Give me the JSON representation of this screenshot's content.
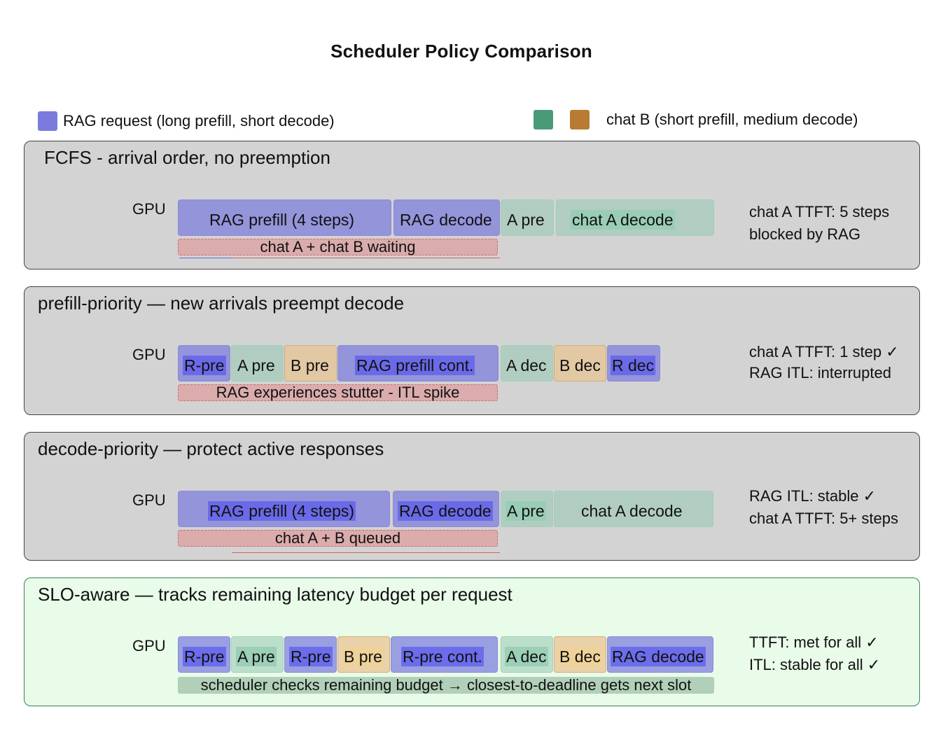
{
  "title": "Scheduler Policy Comparison",
  "colors": {
    "rag": "#7b7bde",
    "chat_a": "#4a9a78",
    "chat_b": "#b87a34",
    "panel": "#d3d3d3",
    "slo_panel": "#e9fbe9"
  },
  "legend": {
    "rag_label": "RAG request (long prefill, short decode)",
    "chat_b_label": "chat B (short prefill, medium decode)"
  },
  "panels": [
    {
      "title": "FCFS - arrival order, no preemption",
      "gpu": "GPU",
      "blocks": [
        "RAG prefill (4 steps)",
        "RAG decode",
        "A pre",
        "chat A decode"
      ],
      "bar": "chat A + chat B waiting",
      "notes": [
        "chat A TTFT: 5 steps",
        "blocked by RAG"
      ]
    },
    {
      "title": "prefill-priority — new arrivals preempt decode",
      "gpu": "GPU",
      "blocks": [
        "R-pre",
        "A pre",
        "B pre",
        "RAG prefill cont.",
        "A dec",
        "B dec",
        "R dec"
      ],
      "bar": "RAG experiences stutter - ITL spike",
      "notes": [
        "chat A TTFT: 1 step ✓",
        "RAG ITL: interrupted"
      ]
    },
    {
      "title": "decode-priority — protect active responses",
      "gpu": "GPU",
      "blocks": [
        "RAG prefill (4 steps)",
        "RAG decode",
        "A pre",
        "chat A decode"
      ],
      "bar": "chat A + B queued",
      "notes": [
        "RAG ITL: stable ✓",
        "chat A TTFT: 5+ steps"
      ]
    },
    {
      "title": "SLO-aware — tracks remaining latency budget per request",
      "gpu": "GPU",
      "blocks": [
        "R-pre",
        "A pre",
        "R-pre",
        "B pre",
        "R-pre cont.",
        "A dec",
        "B dec",
        "RAG decode"
      ],
      "bar": "scheduler checks remaining budget → closest-to-deadline gets next slot",
      "notes": [
        "TTFT: met for all ✓",
        "ITL: stable for all ✓"
      ]
    }
  ]
}
